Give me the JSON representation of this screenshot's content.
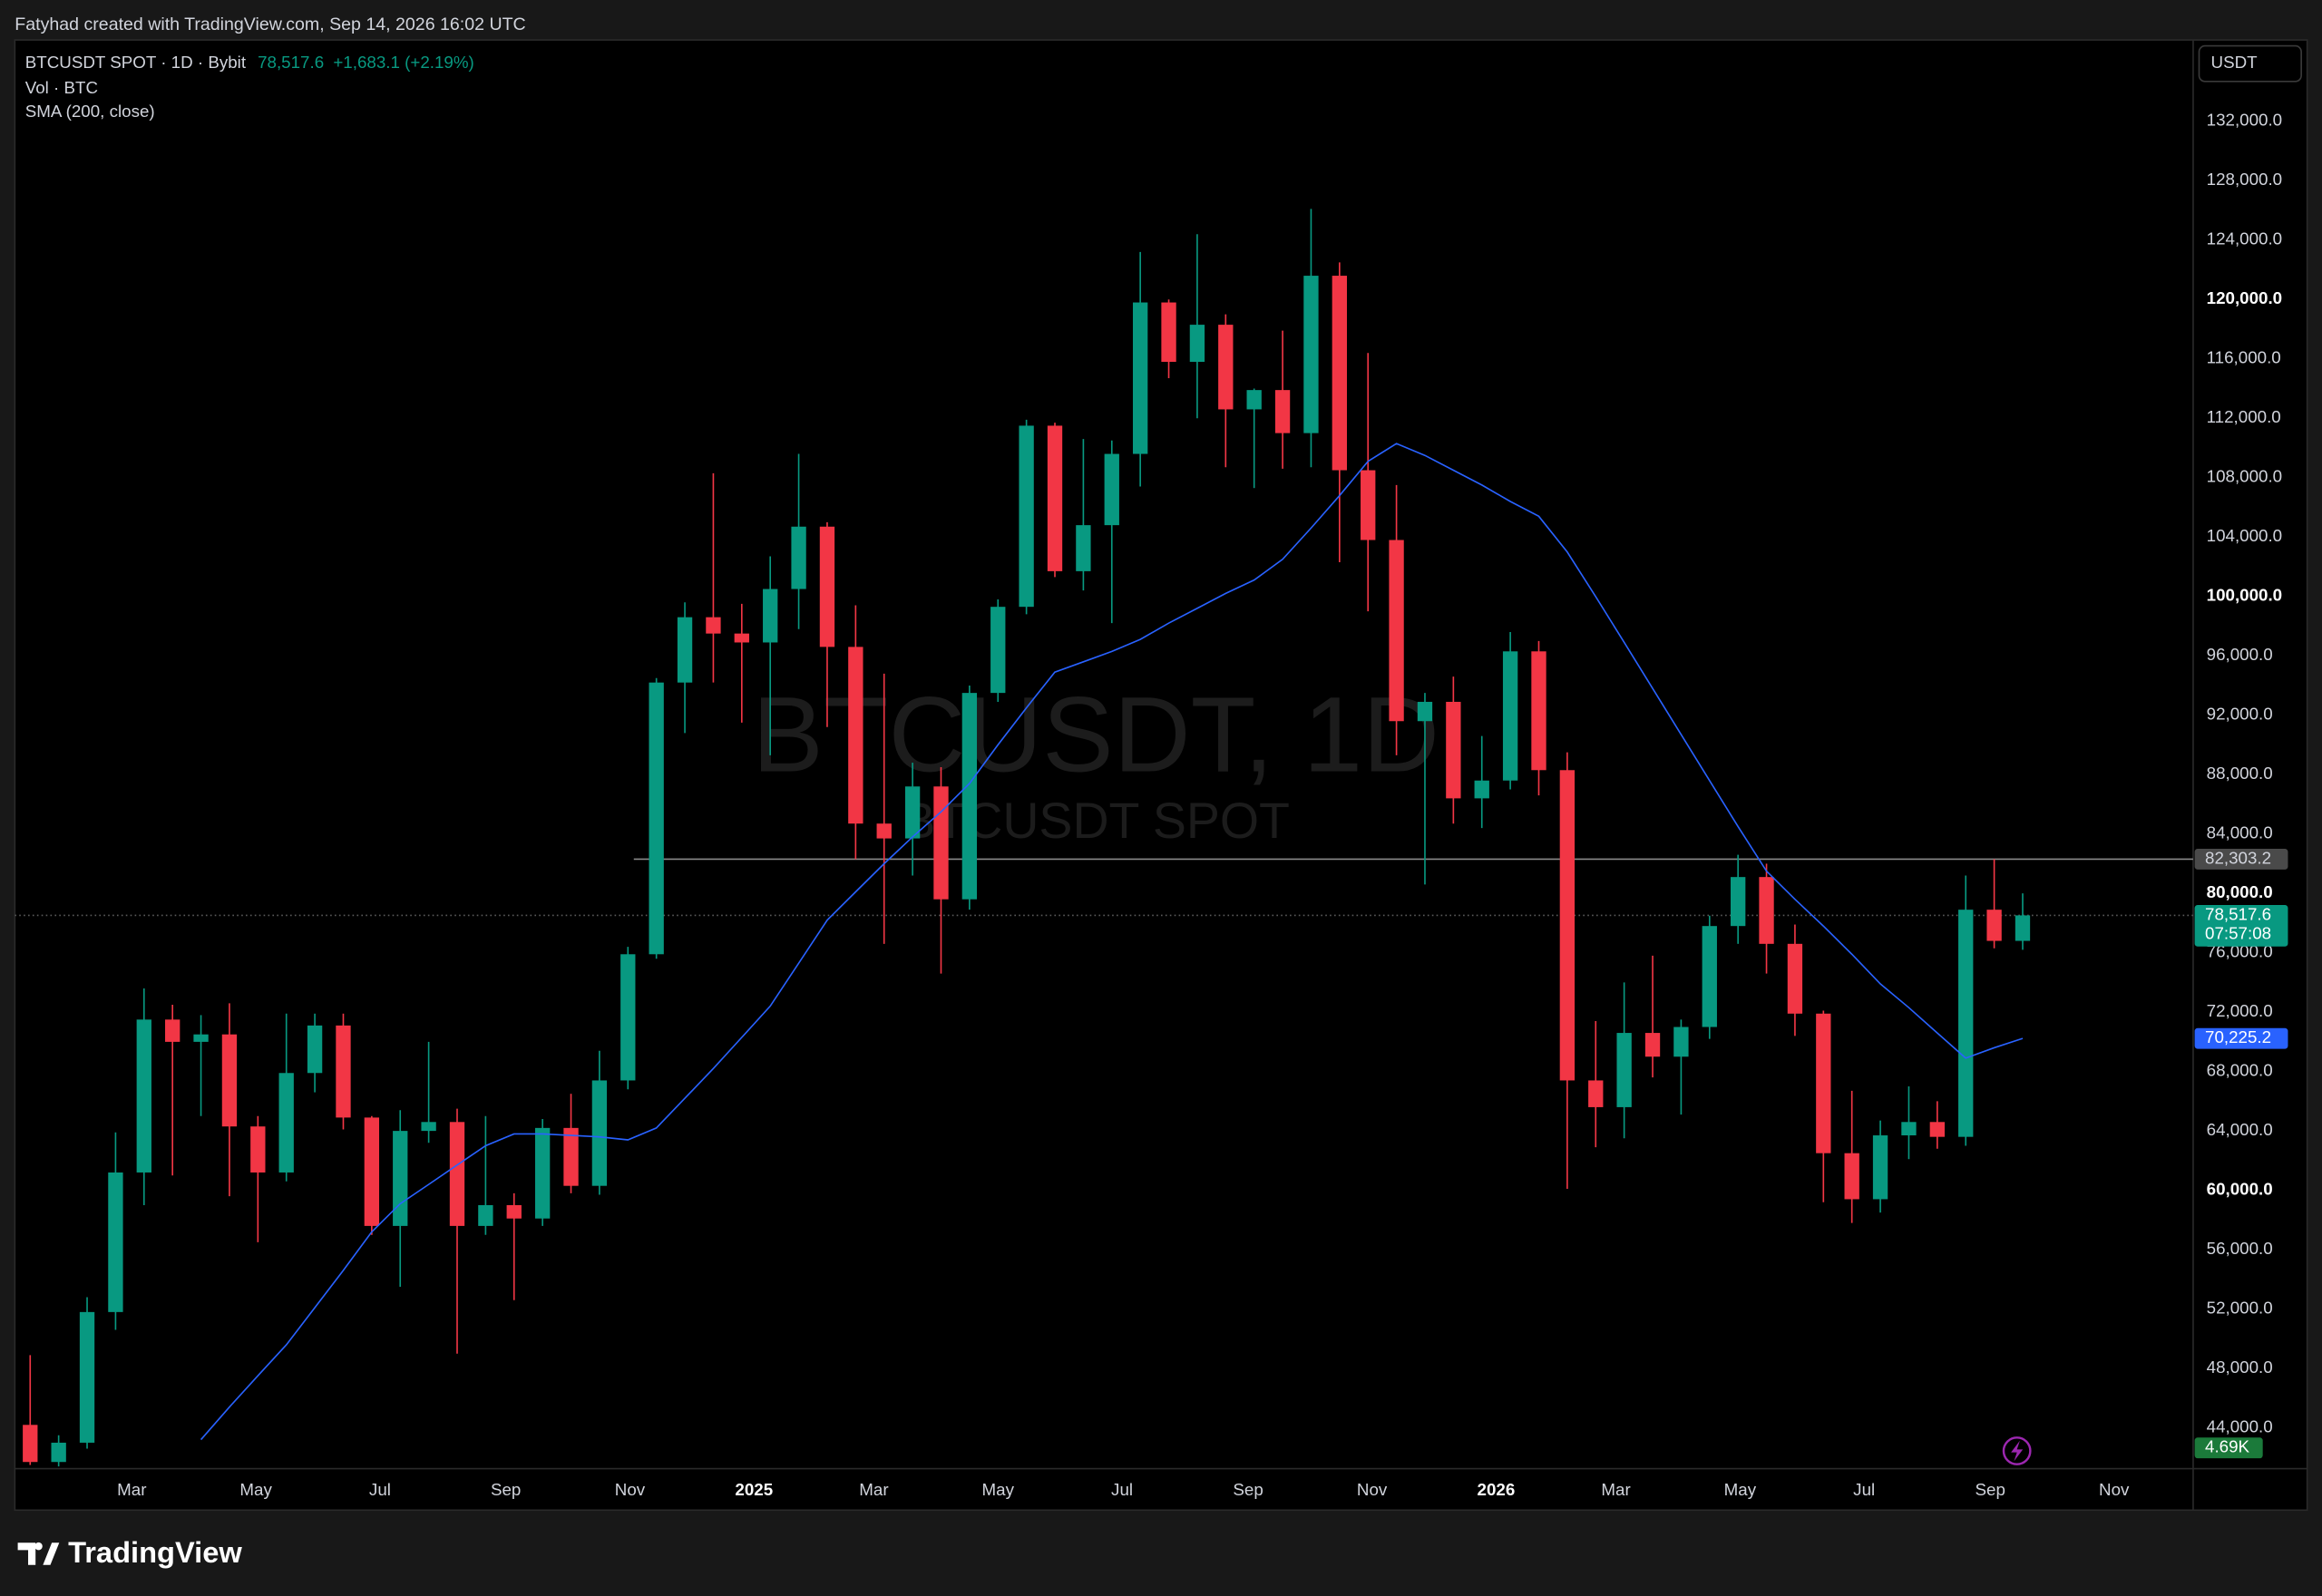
{
  "header": "Fatyhad created with TradingView.com, Sep 14, 2026 16:02 UTC",
  "footer": "TradingView",
  "chart_data": {
    "type": "candlestick",
    "title": "BTCUSDT SPOT · 1D · Bybit",
    "change": "+1,683.1 (+2.19%)",
    "volume_title": "Vol · BTC",
    "volume_label": "4.69K",
    "watermark": [
      "BTCUSDT, 1D",
      "BTCUSDT SPOT"
    ],
    "currency": "USDT",
    "color_up": "#089981",
    "color_down": "#f23645",
    "grid": false,
    "open": [
      44200,
      41700,
      43000,
      51800,
      61200,
      71500,
      70000,
      70500,
      64300,
      61200,
      67900,
      71100,
      64900,
      57600,
      64000,
      64600,
      57600,
      59000,
      58100,
      64200,
      60300,
      67400,
      75900,
      94200,
      98600,
      97500,
      96900,
      100500,
      104700,
      96600,
      84700,
      83700,
      87200,
      79600,
      93500,
      99300,
      111500,
      101700,
      104800,
      109600,
      119800,
      115800,
      118300,
      112600,
      113900,
      111000,
      121600,
      108500,
      103800,
      91600,
      92900,
      86400,
      87600,
      96300,
      88300,
      67400,
      65600,
      70600,
      69000,
      71000,
      77800,
      81100,
      76600,
      71900,
      62500,
      59400,
      63700,
      64600,
      63600,
      78900,
      76800
    ],
    "high": [
      48900,
      43500,
      52800,
      63900,
      73600,
      72500,
      71800,
      72600,
      65000,
      71900,
      71900,
      71900,
      65000,
      65400,
      70000,
      65500,
      65000,
      59800,
      64800,
      66500,
      69400,
      76400,
      94500,
      99600,
      108300,
      99500,
      102700,
      109600,
      105000,
      99400,
      94800,
      88800,
      88500,
      94000,
      99800,
      111900,
      111700,
      110600,
      110500,
      123200,
      120000,
      124400,
      119000,
      114000,
      117900,
      126100,
      122500,
      116400,
      107500,
      93500,
      94600,
      90600,
      97600,
      97000,
      89500,
      71400,
      74000,
      75800,
      71500,
      78500,
      82600,
      82000,
      77900,
      72100,
      66700,
      64700,
      67000,
      66000,
      81200,
      82300,
      80000
    ],
    "low": [
      41500,
      41400,
      42600,
      50600,
      59000,
      61000,
      65000,
      59600,
      56500,
      60600,
      66600,
      64100,
      57000,
      53500,
      63200,
      49000,
      57000,
      52600,
      57600,
      59800,
      59700,
      66800,
      75600,
      90800,
      94200,
      91500,
      89300,
      97800,
      91200,
      82300,
      76600,
      81200,
      74600,
      78900,
      92900,
      98800,
      101300,
      100400,
      98200,
      107400,
      114700,
      112000,
      108700,
      107300,
      108600,
      108700,
      102300,
      99000,
      89300,
      80600,
      84700,
      84400,
      87000,
      86600,
      60100,
      62900,
      63500,
      67600,
      65100,
      70200,
      76600,
      74600,
      70400,
      59200,
      57800,
      58500,
      62100,
      62800,
      63000,
      76300,
      76200
    ],
    "close": [
      41700,
      43000,
      51800,
      61200,
      71500,
      70000,
      70500,
      64300,
      61200,
      67900,
      71100,
      64900,
      57600,
      64000,
      64600,
      57600,
      59000,
      58100,
      64200,
      60300,
      67400,
      75900,
      94200,
      98600,
      97500,
      96900,
      100500,
      104700,
      96600,
      84700,
      83700,
      87200,
      79600,
      93500,
      99300,
      111500,
      101700,
      104800,
      109600,
      119800,
      115800,
      118300,
      112600,
      113900,
      111000,
      121600,
      108500,
      103800,
      91600,
      92900,
      86400,
      87600,
      96300,
      88300,
      67400,
      65600,
      70600,
      69000,
      71000,
      77800,
      81100,
      76600,
      71900,
      62500,
      59400,
      63700,
      64600,
      63600,
      78900,
      76800,
      78517.6
    ],
    "series": [
      {
        "name": "SMA (200, close)",
        "color": "#2962ff",
        "last_label": "70,225.2",
        "values": [
          null,
          null,
          null,
          null,
          null,
          null,
          43200,
          45400,
          47500,
          49600,
          52100,
          54600,
          57200,
          59100,
          60400,
          61700,
          63000,
          63800,
          63800,
          63700,
          63600,
          63400,
          64200,
          66200,
          68200,
          70300,
          72400,
          75300,
          78200,
          80100,
          82000,
          83800,
          85500,
          87400,
          90000,
          92500,
          94900,
          95600,
          96300,
          97100,
          98200,
          99200,
          100200,
          101100,
          102500,
          104600,
          106800,
          109100,
          110300,
          109500,
          108500,
          107500,
          106400,
          105400,
          103000,
          100000,
          96900,
          93800,
          90700,
          87600,
          84500,
          81500,
          79600,
          77800,
          75900,
          73900,
          72300,
          70600,
          68900,
          69600,
          70225.2
        ]
      }
    ],
    "horizontal_line": {
      "value": 82303.2,
      "label": "82,303.2"
    },
    "last_price": {
      "value": 78517.6,
      "label": "78,517.6",
      "countdown": "07:57:08"
    },
    "xlim": [
      -0.54,
      75.99
    ],
    "xticks": [
      {
        "value": 3.57,
        "label": "Mar"
      },
      {
        "value": 7.93,
        "label": "May"
      },
      {
        "value": 12.29,
        "label": "Jul"
      },
      {
        "value": 16.71,
        "label": "Sep"
      },
      {
        "value": 21.07,
        "label": "Nov"
      },
      {
        "value": 25.43,
        "label": "2025"
      },
      {
        "value": 29.64,
        "label": "Mar"
      },
      {
        "value": 34.0,
        "label": "May"
      },
      {
        "value": 38.36,
        "label": "Jul"
      },
      {
        "value": 42.79,
        "label": "Sep"
      },
      {
        "value": 47.14,
        "label": "Nov"
      },
      {
        "value": 51.5,
        "label": "2026"
      },
      {
        "value": 55.71,
        "label": "Mar"
      },
      {
        "value": 60.07,
        "label": "May"
      },
      {
        "value": 64.43,
        "label": "Jul"
      },
      {
        "value": 68.86,
        "label": "Sep"
      },
      {
        "value": 73.21,
        "label": "Nov"
      }
    ],
    "ylim": [
      41250,
      137480
    ],
    "yticks": [
      {
        "value": 44000,
        "label": "44,000.0"
      },
      {
        "value": 48000,
        "label": "48,000.0"
      },
      {
        "value": 52000,
        "label": "52,000.0"
      },
      {
        "value": 56000,
        "label": "56,000.0"
      },
      {
        "value": 60000,
        "label": "60,000.0"
      },
      {
        "value": 64000,
        "label": "64,000.0"
      },
      {
        "value": 68000,
        "label": "68,000.0"
      },
      {
        "value": 72000,
        "label": "72,000.0"
      },
      {
        "value": 76000,
        "label": "76,000.0"
      },
      {
        "value": 80000,
        "label": "80,000.0"
      },
      {
        "value": 84000,
        "label": "84,000.0"
      },
      {
        "value": 88000,
        "label": "88,000.0"
      },
      {
        "value": 92000,
        "label": "92,000.0"
      },
      {
        "value": 96000,
        "label": "96,000.0"
      },
      {
        "value": 100000,
        "label": "100,000.0"
      },
      {
        "value": 104000,
        "label": "104,000.0"
      },
      {
        "value": 108000,
        "label": "108,000.0"
      },
      {
        "value": 112000,
        "label": "112,000.0"
      },
      {
        "value": 116000,
        "label": "116,000.0"
      },
      {
        "value": 120000,
        "label": "120,000.0"
      },
      {
        "value": 124000,
        "label": "124,000.0"
      },
      {
        "value": 128000,
        "label": "128,000.0"
      },
      {
        "value": 132000,
        "label": "132,000.0"
      }
    ]
  }
}
